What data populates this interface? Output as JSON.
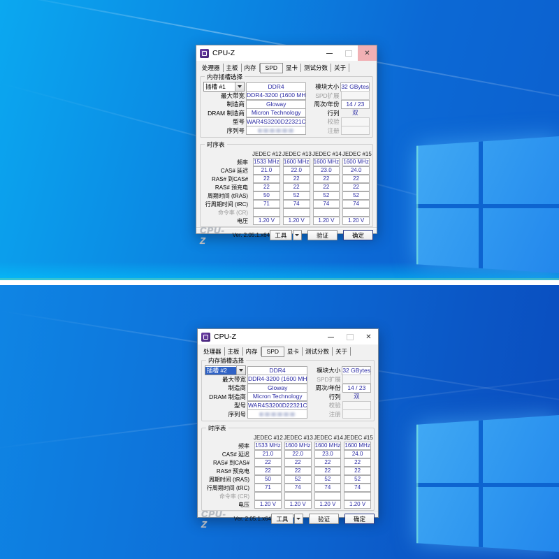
{
  "colors": {
    "wallpaper_light": "#0ba8f0",
    "wallpaper_deep": "#0a4cbe",
    "logo_pane": "#359df2",
    "value_text": "#2a2aa4",
    "selection_blue": "#2f62c6",
    "close_hover_pink": "#f1b0b4",
    "divider": "#ffffff"
  },
  "app": {
    "window_title": "CPU-Z",
    "close_glyph": "✕",
    "tabs": [
      "处理器",
      "主板",
      "内存",
      "SPD",
      "显卡",
      "测试分数",
      "关于"
    ],
    "active_tab": "SPD"
  },
  "memory_group": {
    "label": "内存插槽选择",
    "slot_type": "DDR4",
    "rows_left": [
      {
        "label": "最大带宽",
        "value": "DDR4-3200 (1600 MHz)"
      },
      {
        "label": "制造商",
        "value": "Gloway"
      },
      {
        "label": "DRAM 制造商",
        "value": "Micron Technology"
      },
      {
        "label": "型号",
        "value": "WAR4S3200D22321C"
      },
      {
        "label": "序列号",
        "value": ""
      }
    ],
    "rows_right": [
      {
        "label": "模块大小",
        "value": "32 GBytes"
      },
      {
        "label": "SPD扩展",
        "value": ""
      },
      {
        "label": "周次/年份",
        "value": "14 / 23"
      },
      {
        "label": "行列",
        "value": "双"
      },
      {
        "label": "校验",
        "value": ""
      },
      {
        "label": "注册",
        "value": ""
      }
    ]
  },
  "timings": {
    "label": "时序表",
    "columns": [
      "JEDEC #12",
      "JEDEC #13",
      "JEDEC #14",
      "JEDEC #15"
    ],
    "rows": [
      {
        "label": "频率",
        "values": [
          "1533 MHz",
          "1600 MHz",
          "1600 MHz",
          "1600 MHz"
        ]
      },
      {
        "label": "CAS# 延迟",
        "values": [
          "21.0",
          "22.0",
          "23.0",
          "24.0"
        ]
      },
      {
        "label": "RAS# 到CAS#",
        "values": [
          "22",
          "22",
          "22",
          "22"
        ]
      },
      {
        "label": "RAS# 预充电",
        "values": [
          "22",
          "22",
          "22",
          "22"
        ]
      },
      {
        "label": "周期时间 (tRAS)",
        "values": [
          "50",
          "52",
          "52",
          "52"
        ]
      },
      {
        "label": "行周期时间 (tRC)",
        "values": [
          "71",
          "74",
          "74",
          "74"
        ]
      },
      {
        "label": "命令率 (CR)",
        "values": [
          "",
          "",
          "",
          ""
        ]
      },
      {
        "label": "电压",
        "values": [
          "1.20 V",
          "1.20 V",
          "1.20 V",
          "1.20 V"
        ]
      }
    ]
  },
  "statusbar": {
    "logo": "CPU-Z",
    "version": "Ver. 2.05.1.x64",
    "tools_label": "工具",
    "validate_label": "验证",
    "ok_label": "确定"
  },
  "windows": [
    {
      "slot": "插槽 #1",
      "slot_selected": false,
      "close_hover": true
    },
    {
      "slot": "插槽 #2",
      "slot_selected": true,
      "close_hover": false
    }
  ]
}
